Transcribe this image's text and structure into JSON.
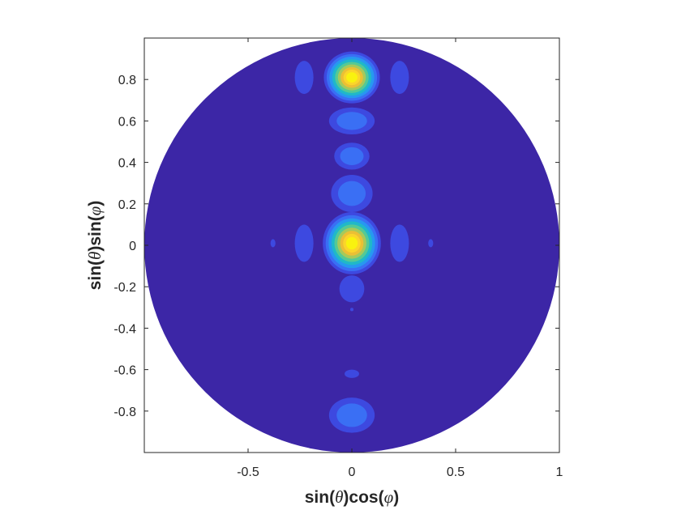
{
  "chart_data": {
    "type": "contour",
    "xlabel": {
      "pre": "sin(",
      "sym1": "θ",
      "mid": ")cos(",
      "sym2": "φ",
      "post": ")"
    },
    "ylabel": {
      "pre": "sin(",
      "sym1": "θ",
      "mid": ")sin(",
      "sym2": "φ",
      "post": ")"
    },
    "xlim": [
      -1,
      1
    ],
    "ylim": [
      -1,
      1
    ],
    "xticks": [
      {
        "value": -0.5,
        "label": "-0.5"
      },
      {
        "value": 0,
        "label": "0"
      },
      {
        "value": 0.5,
        "label": "0.5"
      },
      {
        "value": 1,
        "label": "1"
      }
    ],
    "yticks": [
      {
        "value": 0.8,
        "label": "0.8"
      },
      {
        "value": 0.6,
        "label": "0.6"
      },
      {
        "value": 0.4,
        "label": "0.4"
      },
      {
        "value": 0.2,
        "label": "0.2"
      },
      {
        "value": 0,
        "label": "0"
      },
      {
        "value": -0.2,
        "label": "-0.2"
      },
      {
        "value": -0.4,
        "label": "-0.4"
      },
      {
        "value": -0.6,
        "label": "-0.6"
      },
      {
        "value": -0.8,
        "label": "-0.8"
      }
    ],
    "domain": "unit circle",
    "colormap": [
      "#3c26a6",
      "#3d49e0",
      "#3a6ff4",
      "#2798f0",
      "#20b8c8",
      "#55c995",
      "#a6c95b",
      "#ebbf35",
      "#fbd52a",
      "#f9f20f"
    ],
    "features": [
      {
        "x": 0,
        "y": 0.81,
        "rx": 0.135,
        "ry": 0.125,
        "levels": 10
      },
      {
        "x": 0,
        "y": 0.01,
        "rx": 0.14,
        "ry": 0.15,
        "levels": 10
      },
      {
        "x": 0,
        "y": 0.6,
        "rx": 0.11,
        "ry": 0.065,
        "levels": 3
      },
      {
        "x": 0,
        "y": 0.43,
        "rx": 0.085,
        "ry": 0.065,
        "levels": 3
      },
      {
        "x": 0,
        "y": 0.25,
        "rx": 0.1,
        "ry": 0.09,
        "levels": 3
      },
      {
        "x": 0,
        "y": -0.21,
        "rx": 0.06,
        "ry": 0.065,
        "levels": 2
      },
      {
        "x": 0,
        "y": -0.82,
        "rx": 0.11,
        "ry": 0.085,
        "levels": 3
      },
      {
        "x": 0,
        "y": -0.62,
        "rx": 0.035,
        "ry": 0.02,
        "levels": 2
      },
      {
        "x": 0,
        "y": -0.31,
        "rx": 0.008,
        "ry": 0.008,
        "levels": 2
      },
      {
        "x": -0.23,
        "y": 0.81,
        "rx": 0.045,
        "ry": 0.08,
        "levels": 2
      },
      {
        "x": 0.23,
        "y": 0.81,
        "rx": 0.045,
        "ry": 0.08,
        "levels": 2
      },
      {
        "x": -0.23,
        "y": 0.01,
        "rx": 0.045,
        "ry": 0.09,
        "levels": 2
      },
      {
        "x": 0.23,
        "y": 0.01,
        "rx": 0.045,
        "ry": 0.09,
        "levels": 2
      },
      {
        "x": -0.38,
        "y": 0.01,
        "rx": 0.012,
        "ry": 0.02,
        "levels": 2
      },
      {
        "x": 0.38,
        "y": 0.01,
        "rx": 0.012,
        "ry": 0.02,
        "levels": 2
      }
    ]
  }
}
